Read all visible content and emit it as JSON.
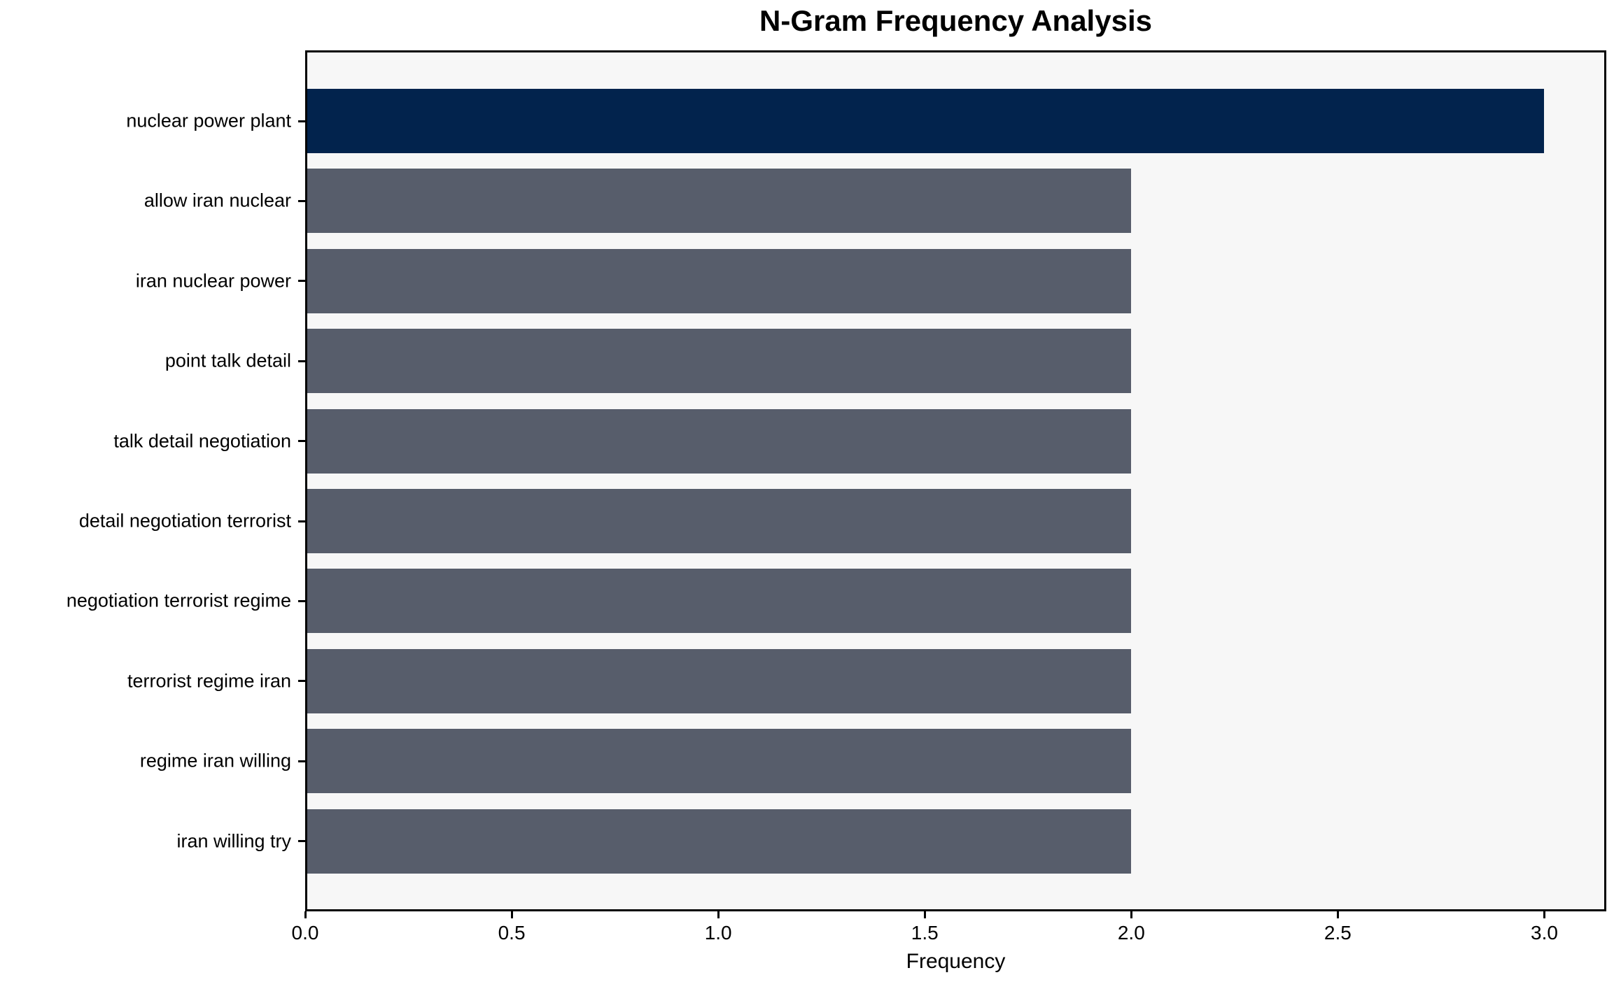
{
  "chart_data": {
    "type": "bar",
    "orientation": "horizontal",
    "title": "N-Gram Frequency Analysis",
    "xlabel": "Frequency",
    "ylabel": "",
    "categories": [
      "nuclear power plant",
      "allow iran nuclear",
      "iran nuclear power",
      "point talk detail",
      "talk detail negotiation",
      "detail negotiation terrorist",
      "negotiation terrorist regime",
      "terrorist regime iran",
      "regime iran willing",
      "iran willing try"
    ],
    "values": [
      3.0,
      2.0,
      2.0,
      2.0,
      2.0,
      2.0,
      2.0,
      2.0,
      2.0,
      2.0
    ],
    "bar_colors": [
      "#02234d",
      "#575d6b",
      "#575d6b",
      "#575d6b",
      "#575d6b",
      "#575d6b",
      "#575d6b",
      "#575d6b",
      "#575d6b",
      "#575d6b"
    ],
    "x_ticks": [
      "0.0",
      "0.5",
      "1.0",
      "1.5",
      "2.0",
      "2.5",
      "3.0"
    ],
    "xlim": [
      0,
      3.15
    ],
    "grid": false,
    "legend": null,
    "colors": {
      "highlight_bar": "#02234d",
      "default_bar": "#575d6b",
      "plot_background": "#f7f7f7",
      "figure_background": "#ffffff",
      "spine": "#000000",
      "text": "#000000"
    }
  }
}
